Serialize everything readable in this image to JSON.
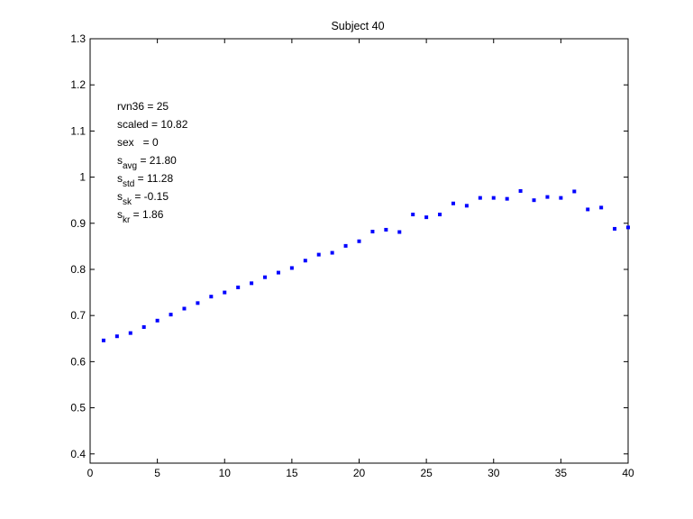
{
  "chart_data": {
    "type": "scatter",
    "title": "Subject 40",
    "xlabel": "",
    "ylabel": "",
    "xlim": [
      0,
      40
    ],
    "ylim": [
      0.38,
      1.3
    ],
    "grid": false,
    "marker_color": "#0000ff",
    "x_ticks": [
      "0",
      "5",
      "10",
      "15",
      "20",
      "25",
      "30",
      "35",
      "40"
    ],
    "y_ticks": [
      "0.4",
      "0.5",
      "0.6",
      "0.7",
      "0.8",
      "0.9",
      "1",
      "1.1",
      "1.2",
      "1.3"
    ],
    "series": [
      {
        "x": [
          1,
          2,
          3,
          4,
          5,
          6,
          7,
          8,
          9,
          10,
          11,
          12,
          13,
          14,
          15,
          16,
          17,
          18,
          19,
          20,
          21,
          22,
          23,
          24,
          25,
          26,
          27,
          28,
          29,
          30,
          31,
          32,
          33,
          34,
          35,
          36,
          37,
          38,
          39,
          40
        ],
        "y": [
          0.646,
          0.655,
          0.662,
          0.675,
          0.689,
          0.702,
          0.715,
          0.727,
          0.741,
          0.75,
          0.761,
          0.77,
          0.783,
          0.793,
          0.803,
          0.819,
          0.832,
          0.836,
          0.851,
          0.861,
          0.882,
          0.886,
          0.881,
          0.919,
          0.913,
          0.919,
          0.943,
          0.938,
          0.955,
          0.955,
          0.953,
          0.97,
          0.95,
          0.957,
          0.955,
          0.969,
          0.93,
          0.934,
          0.888,
          0.891
        ]
      }
    ],
    "annotations": [
      {
        "main": "rvn36 = 25",
        "sub": "",
        "rest": ""
      },
      {
        "main": "scaled = 10.82",
        "sub": "",
        "rest": ""
      },
      {
        "main": "sex   = 0",
        "sub": "",
        "rest": ""
      },
      {
        "main": "s",
        "sub": "avg",
        "rest": " = 21.80"
      },
      {
        "main": "s",
        "sub": "std",
        "rest": " = 11.28"
      },
      {
        "main": "s",
        "sub": "sk",
        "rest": " = -0.15"
      },
      {
        "main": "s",
        "sub": "kr",
        "rest": " = 1.86"
      }
    ]
  }
}
